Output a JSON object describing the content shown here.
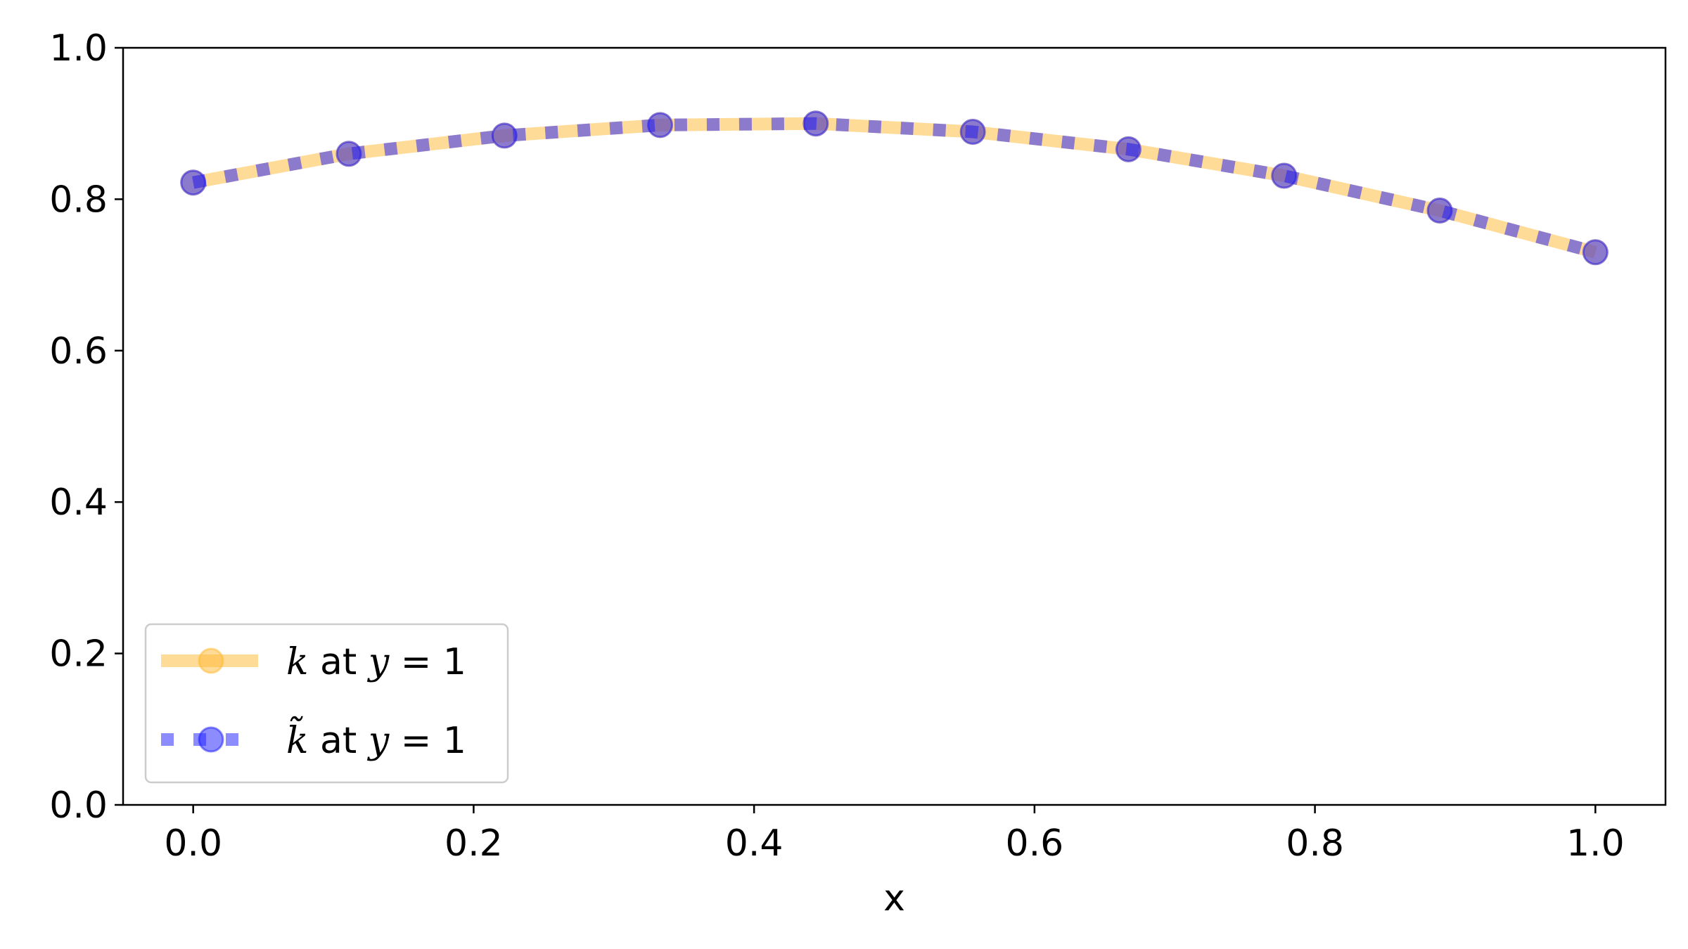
{
  "chart_data": {
    "type": "line",
    "xlabel": "x",
    "ylabel": "",
    "xlim": [
      -0.05,
      1.05
    ],
    "ylim": [
      0.0,
      1.0
    ],
    "xticks": [
      0.0,
      0.2,
      0.4,
      0.6,
      0.8,
      1.0
    ],
    "yticks": [
      0.0,
      0.2,
      0.4,
      0.6,
      0.8,
      1.0
    ],
    "xtick_labels": [
      "0.0",
      "0.2",
      "0.4",
      "0.6",
      "0.8",
      "1.0"
    ],
    "ytick_labels": [
      "0.0",
      "0.2",
      "0.4",
      "0.6",
      "0.8",
      "1.0"
    ],
    "grid": false,
    "legend_position": "lower-left",
    "x": [
      0.0,
      0.111,
      0.222,
      0.333,
      0.444,
      0.556,
      0.667,
      0.778,
      0.889,
      1.0
    ],
    "series": [
      {
        "name": "k at y = 1",
        "legend": {
          "sym": "k",
          "rest": " at ",
          "var": "y",
          "eq": " = 1"
        },
        "color": "#ffb732",
        "style": "solid",
        "values": [
          0.822,
          0.86,
          0.884,
          0.898,
          0.9,
          0.889,
          0.866,
          0.831,
          0.785,
          0.73
        ]
      },
      {
        "name": "k̃ at y = 1",
        "legend": {
          "sym": "k̃",
          "rest": " at ",
          "var": "y",
          "eq": " = 1"
        },
        "color": "#1a1aff",
        "style": "dotted",
        "values": [
          0.822,
          0.86,
          0.884,
          0.898,
          0.9,
          0.889,
          0.866,
          0.831,
          0.785,
          0.73
        ]
      }
    ]
  }
}
